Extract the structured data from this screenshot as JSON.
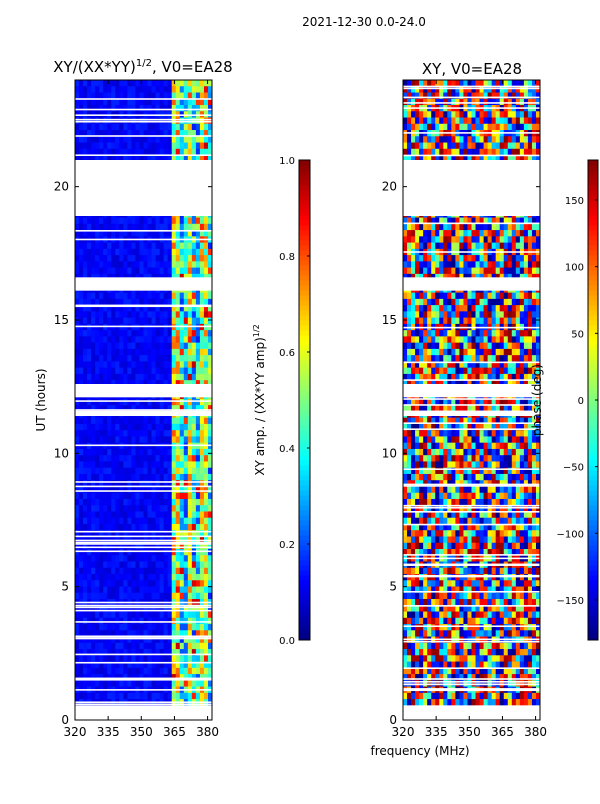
{
  "suptitle": "2021-12-30 0.0-24.0",
  "shared": {
    "ylabel": "UT (hours)",
    "xlabel": "frequency (MHz)",
    "yticks": [
      0,
      5,
      10,
      15,
      20
    ],
    "xticks": [
      320,
      335,
      350,
      365,
      380
    ],
    "xlim": [
      320,
      382
    ],
    "ylim": [
      0,
      24
    ]
  },
  "data_rows": [
    0.55,
    24.0
  ],
  "gaps": [
    [
      11.4,
      11.6
    ],
    [
      12.1,
      12.6
    ],
    [
      16.1,
      16.6
    ],
    [
      18.9,
      21.0
    ]
  ],
  "chart_data": [
    {
      "type": "heatmap",
      "title_main": "XY/(XX*YY)",
      "title_sup": "1/2",
      "title_tail": ", V0=EA28",
      "quantity": "XY amplitude normalized",
      "colorbar": {
        "label_main": "XY amp. / (XX*YY amp)",
        "label_sup": "1/2",
        "range": [
          0.0,
          1.0
        ],
        "ticks": [
          0.0,
          0.2,
          0.4,
          0.6,
          0.8,
          1.0
        ],
        "ticklabels": [
          "0.0",
          "0.2",
          "0.4",
          "0.6",
          "0.8",
          "1.0"
        ]
      }
    },
    {
      "type": "heatmap",
      "title_main": "XY, V0=EA28",
      "quantity": "XY phase",
      "colorbar": {
        "label_main": "phase (deg)",
        "range": [
          -180,
          180
        ],
        "ticks": [
          -150,
          -100,
          -50,
          0,
          50,
          100,
          150
        ],
        "ticklabels": [
          "−150",
          "−100",
          "−50",
          "0",
          "50",
          "100",
          "150"
        ]
      }
    }
  ]
}
